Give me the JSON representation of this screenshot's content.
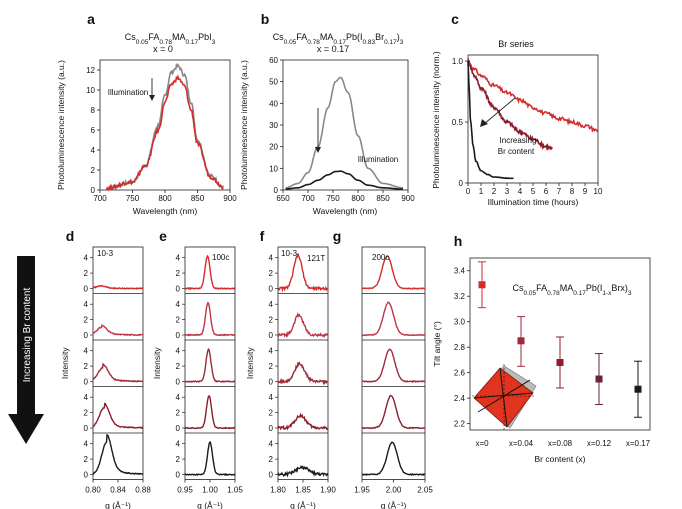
{
  "colors": {
    "red": "#d42b2b",
    "dark_red": "#8a1f2b",
    "grey": "#888888",
    "black": "#1a1a1a"
  },
  "side_label": "Increasing Br content",
  "chart_data": [
    {
      "panel": "a",
      "type": "line",
      "title": "Cs0.05FA0.78MA0.17PbI3",
      "subtitle": "x = 0",
      "xlabel": "Wavelength (nm)",
      "ylabel": "Photoluminescence intensity (a.u.)",
      "xlim": [
        700,
        900
      ],
      "ylim": [
        0,
        13
      ],
      "xticks": [
        "700",
        "750",
        "800",
        "850",
        "900"
      ],
      "yticks": [
        "0",
        "2",
        "4",
        "6",
        "8",
        "10",
        "12"
      ],
      "annotation": "Illumination",
      "series": [
        {
          "color": "#888888",
          "x": [
            710,
            750,
            770,
            790,
            800,
            810,
            820,
            830,
            840,
            850,
            870,
            890
          ],
          "y": [
            0.2,
            0.8,
            2.5,
            6.5,
            9.5,
            11.8,
            12.4,
            11.5,
            8.8,
            5.0,
            1.4,
            0.3
          ]
        },
        {
          "color": "#d42b2b",
          "x": [
            710,
            750,
            770,
            790,
            800,
            810,
            820,
            830,
            840,
            850,
            870,
            890
          ],
          "y": [
            0.2,
            0.8,
            2.4,
            6.0,
            8.8,
            10.6,
            11.2,
            10.4,
            8.0,
            4.6,
            1.3,
            0.3
          ]
        }
      ]
    },
    {
      "panel": "b",
      "type": "line",
      "title": "Cs0.05FA0.78MA0.17Pb(I0.83Br0.17)3",
      "subtitle": "x = 0.17",
      "xlabel": "Wavelength (nm)",
      "ylabel": "Photoluminescence intensity (a.u.)",
      "xlim": [
        650,
        900
      ],
      "ylim": [
        0,
        60
      ],
      "xticks": [
        "650",
        "700",
        "750",
        "800",
        "850",
        "900"
      ],
      "yticks": [
        "0",
        "10",
        "20",
        "30",
        "40",
        "50",
        "60"
      ],
      "annotation": "Illumination",
      "series": [
        {
          "color": "#888888",
          "x": [
            655,
            680,
            700,
            720,
            740,
            755,
            765,
            780,
            800,
            820,
            850,
            890
          ],
          "y": [
            1,
            3,
            8,
            20,
            38,
            50,
            52,
            45,
            25,
            10,
            3,
            1
          ]
        },
        {
          "color": "#1a1a1a",
          "x": [
            655,
            680,
            700,
            720,
            740,
            755,
            765,
            780,
            800,
            820,
            850,
            890
          ],
          "y": [
            0.5,
            1,
            2.5,
            4.5,
            7,
            8.5,
            8.7,
            7.5,
            4.5,
            2.2,
            1,
            0.4
          ]
        }
      ]
    },
    {
      "panel": "c",
      "type": "line",
      "title": "Br series",
      "xlabel": "Illumination time (hours)",
      "ylabel": "Photoluminescence intensity (norm.)",
      "xlim": [
        0,
        10
      ],
      "ylim": [
        0,
        1.05
      ],
      "xticks": [
        "0",
        "1",
        "2",
        "3",
        "4",
        "5",
        "6",
        "7",
        "8",
        "9",
        "10"
      ],
      "yticks": [
        "0",
        "0.5",
        "1.0"
      ],
      "annotation": "Increasing\nBr content",
      "series": [
        {
          "color": "#d42b2b",
          "x": [
            0,
            0.5,
            1,
            2,
            3,
            4,
            5,
            6,
            7,
            8,
            9,
            10
          ],
          "y": [
            1.0,
            0.93,
            0.88,
            0.8,
            0.74,
            0.68,
            0.62,
            0.57,
            0.53,
            0.5,
            0.47,
            0.43
          ]
        },
        {
          "color": "#8a1f2b",
          "x": [
            0,
            0.5,
            1,
            2,
            3,
            4,
            5,
            6,
            6.5
          ],
          "y": [
            1.0,
            0.88,
            0.78,
            0.62,
            0.5,
            0.42,
            0.36,
            0.3,
            0.28
          ]
        },
        {
          "color": "#1a1a1a",
          "x": [
            0,
            0.1,
            0.2,
            0.4,
            0.6,
            1,
            1.5,
            2,
            3,
            3.5
          ],
          "y": [
            1.0,
            0.75,
            0.5,
            0.3,
            0.18,
            0.1,
            0.07,
            0.05,
            0.04,
            0.04
          ]
        }
      ]
    },
    {
      "panel": "d",
      "type": "line",
      "stacked": true,
      "title": "10-3",
      "xlabel": "q (Å⁻¹)",
      "ylabel": "Intensity",
      "xlim": [
        0.8,
        0.88
      ],
      "ylim": [
        0,
        5
      ],
      "xticks": [
        "0.80",
        "0.84",
        "0.88"
      ],
      "yticks": [
        "0",
        "2",
        "4"
      ],
      "peaks": [
        {
          "center": 0.812,
          "height": 0.3,
          "width": 0.008,
          "color": "#d42b2b"
        },
        {
          "center": 0.814,
          "height": 1.0,
          "width": 0.008,
          "color": "#c03545"
        },
        {
          "center": 0.816,
          "height": 1.8,
          "width": 0.008,
          "color": "#a02a3a"
        },
        {
          "center": 0.818,
          "height": 2.6,
          "width": 0.008,
          "color": "#8a1f2b"
        },
        {
          "center": 0.822,
          "height": 4.2,
          "width": 0.008,
          "color": "#1a1a1a"
        }
      ]
    },
    {
      "panel": "e",
      "type": "line",
      "stacked": true,
      "title": "100c",
      "xlabel": "q (Å⁻¹)",
      "ylabel": "Intensity",
      "xlim": [
        0.95,
        1.05
      ],
      "ylim": [
        0,
        5
      ],
      "xticks": [
        "0.95",
        "1.00",
        "1.05"
      ],
      "yticks": [
        "0",
        "2",
        "4"
      ],
      "peaks": [
        {
          "center": 0.995,
          "height": 4.2,
          "width": 0.005,
          "color": "#d42b2b"
        },
        {
          "center": 0.996,
          "height": 4.2,
          "width": 0.005,
          "color": "#c03545"
        },
        {
          "center": 0.997,
          "height": 4.2,
          "width": 0.005,
          "color": "#a02a3a"
        },
        {
          "center": 0.998,
          "height": 4.2,
          "width": 0.005,
          "color": "#8a1f2b"
        },
        {
          "center": 1.0,
          "height": 4.2,
          "width": 0.005,
          "color": "#1a1a1a"
        }
      ]
    },
    {
      "panel": "f",
      "type": "line",
      "stacked": true,
      "title": "10-3",
      "subtitle": "121T",
      "xlabel": "q (Å⁻¹)",
      "ylabel": "Intensity",
      "xlim": [
        1.8,
        1.92
      ],
      "ylim": [
        0,
        5
      ],
      "xticks": [
        "1.80",
        "1.85",
        "1.90"
      ],
      "yticks": [
        "0",
        "2",
        "4"
      ],
      "peaks": [
        {
          "center": 1.848,
          "height": 4.3,
          "width": 0.01,
          "color": "#d42b2b"
        },
        {
          "center": 1.85,
          "height": 2.6,
          "width": 0.011,
          "color": "#c03545"
        },
        {
          "center": 1.852,
          "height": 2.3,
          "width": 0.012,
          "color": "#a02a3a"
        },
        {
          "center": 1.854,
          "height": 1.6,
          "width": 0.013,
          "color": "#8a1f2b"
        },
        {
          "center": 1.858,
          "height": 0.9,
          "width": 0.016,
          "color": "#1a1a1a"
        }
      ]
    },
    {
      "panel": "g",
      "type": "line",
      "stacked": true,
      "title": "200c",
      "xlabel": "q (Å⁻¹)",
      "ylabel": "",
      "xlim": [
        1.95,
        2.05
      ],
      "ylim": [
        0,
        5
      ],
      "xticks": [
        "1.95",
        "2.00",
        "2.05"
      ],
      "yticks": [],
      "peaks": [
        {
          "center": 1.99,
          "height": 4.2,
          "width": 0.008,
          "color": "#d42b2b"
        },
        {
          "center": 1.992,
          "height": 4.2,
          "width": 0.008,
          "color": "#c03545"
        },
        {
          "center": 1.994,
          "height": 4.2,
          "width": 0.008,
          "color": "#a02a3a"
        },
        {
          "center": 1.996,
          "height": 4.2,
          "width": 0.008,
          "color": "#8a1f2b"
        },
        {
          "center": 1.998,
          "height": 4.2,
          "width": 0.008,
          "color": "#1a1a1a"
        }
      ]
    },
    {
      "panel": "h",
      "type": "scatter",
      "title": "Cs0.05FA0.78MA0.17Pb(I1-xBrx)3",
      "xlabel": "Br content (x)",
      "ylabel": "Tilt angle (°)",
      "ylim": [
        2.15,
        3.5
      ],
      "categories": [
        "x=0",
        "x=0.04",
        "x=0.08",
        "x=0.12",
        "x=0.17"
      ],
      "yticks": [
        "2.2",
        "2.4",
        "2.6",
        "2.8",
        "3.0",
        "3.2",
        "3.4"
      ],
      "values": [
        3.29,
        2.85,
        2.68,
        2.55,
        2.47
      ],
      "err_low": [
        0.18,
        0.2,
        0.2,
        0.2,
        0.22
      ],
      "err_high": [
        0.18,
        0.19,
        0.2,
        0.2,
        0.22
      ],
      "colors": [
        "#d42b2b",
        "#a02a3a",
        "#8a1f2b",
        "#6a2535",
        "#1a1a1a"
      ]
    }
  ]
}
